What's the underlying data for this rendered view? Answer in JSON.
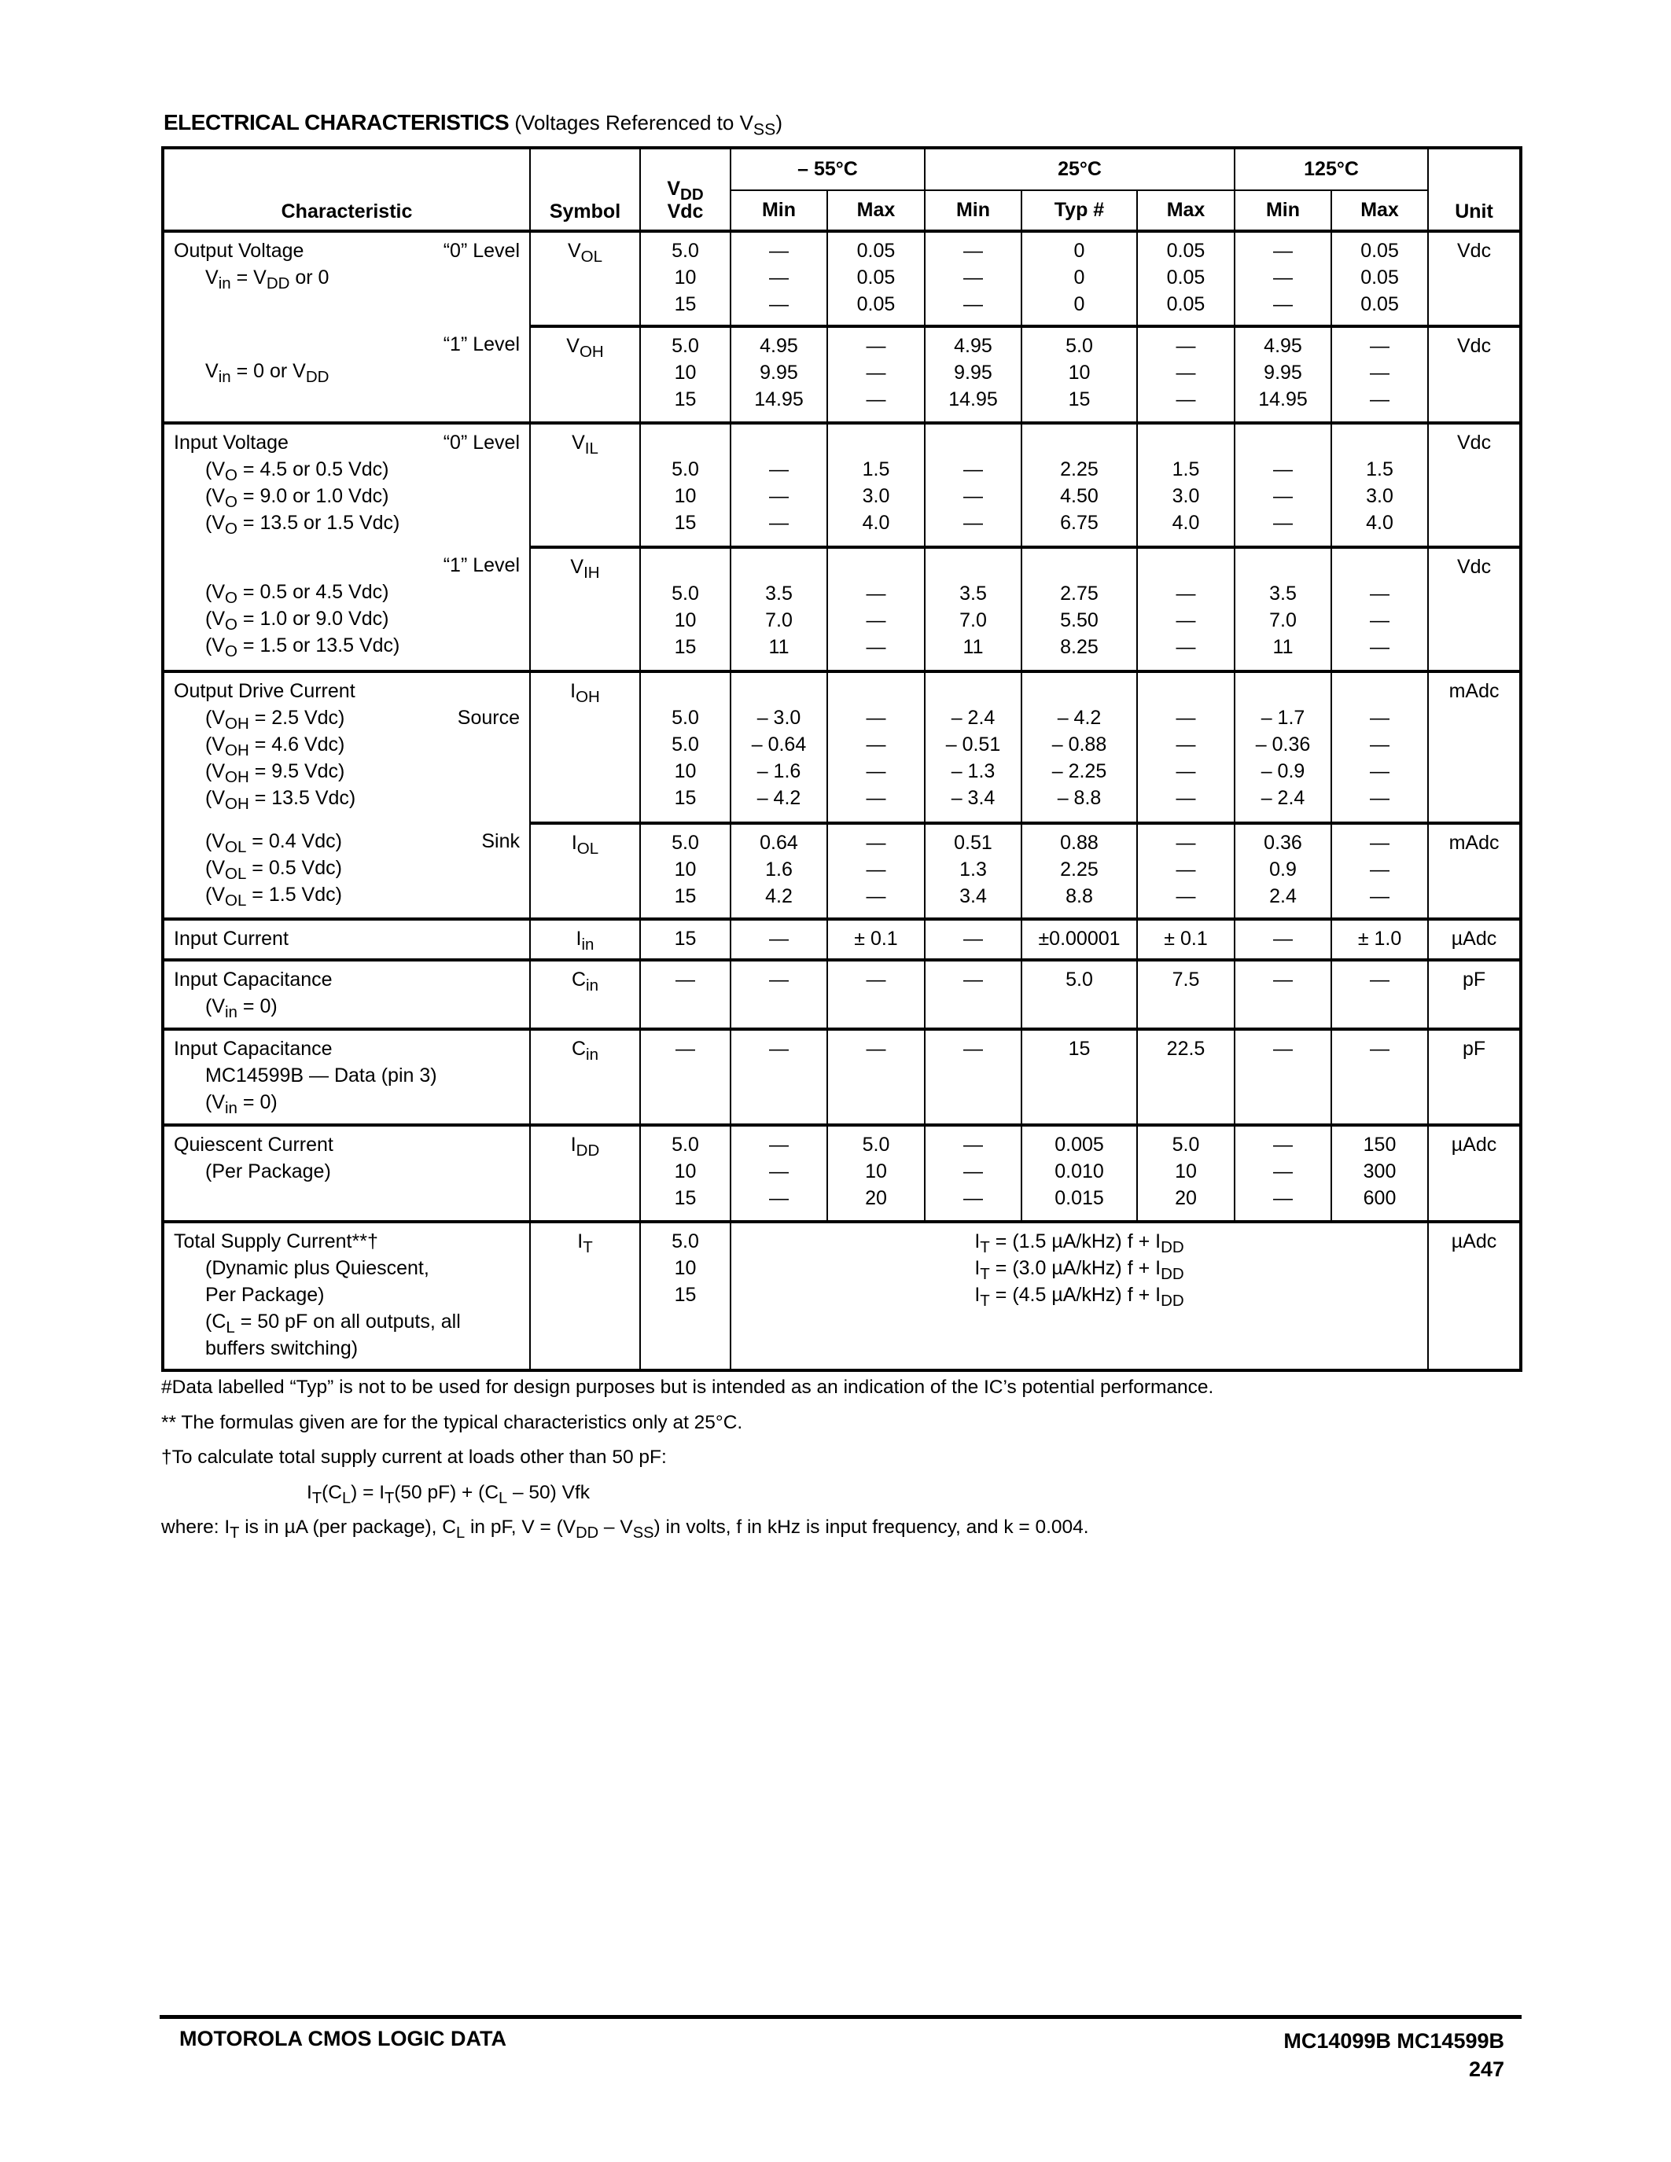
{
  "title": {
    "bold": "ELECTRICAL CHARACTERISTICS",
    "rest": "(Voltages Referenced to V_{SS})"
  },
  "headers": {
    "characteristic": "Characteristic",
    "symbol": "Symbol",
    "vdd": "V_{DD}",
    "vdd_unit": "Vdc",
    "temps": [
      "– 55°C",
      "25°C",
      "125°C"
    ],
    "sub": [
      "Min",
      "Max",
      "Min",
      "Typ #",
      "Max",
      "Min",
      "Max"
    ],
    "unit": "Unit"
  },
  "rows": [
    {
      "group_start": true,
      "characteristic": [
        {
          "text": "Output Voltage",
          "label": "“0” Level"
        },
        {
          "text": "V_{in} =  V_{DD} or 0",
          "indent": true
        }
      ],
      "symbol": "V_{OL}",
      "vdd": [
        "5.0",
        "10",
        "15"
      ],
      "values": [
        [
          "—",
          "—",
          "—"
        ],
        [
          "0.05",
          "0.05",
          "0.05"
        ],
        [
          "—",
          "—",
          "—"
        ],
        [
          "0",
          "0",
          "0"
        ],
        [
          "0.05",
          "0.05",
          "0.05"
        ],
        [
          "—",
          "—",
          "—"
        ],
        [
          "0.05",
          "0.05",
          "0.05"
        ]
      ],
      "unit": "Vdc"
    },
    {
      "group_start": false,
      "characteristic": [
        {
          "text": "",
          "label": "“1” Level"
        },
        {
          "text": "V_{in} = 0 or V_{DD}",
          "indent": true
        }
      ],
      "symbol": "V_{OH}",
      "vdd": [
        "5.0",
        "10",
        "15"
      ],
      "values": [
        [
          "4.95",
          "9.95",
          "14.95"
        ],
        [
          "—",
          "—",
          "—"
        ],
        [
          "4.95",
          "9.95",
          "14.95"
        ],
        [
          "5.0",
          "10",
          "15"
        ],
        [
          "—",
          "—",
          "—"
        ],
        [
          "4.95",
          "9.95",
          "14.95"
        ],
        [
          "—",
          "—",
          "—"
        ]
      ],
      "unit": "Vdc"
    },
    {
      "group_start": true,
      "characteristic": [
        {
          "text": "Input Voltage",
          "label": "“0” Level"
        },
        {
          "text": "(V_{O} = 4.5 or 0.5 Vdc)",
          "indent": true
        },
        {
          "text": "(V_{O} = 9.0 or 1.0 Vdc)",
          "indent": true
        },
        {
          "text": "(V_{O} = 13.5 or 1.5 Vdc)",
          "indent": true
        }
      ],
      "symbol": "V_{IL}",
      "vdd": [
        "",
        "5.0",
        "10",
        "15"
      ],
      "values": [
        [
          "",
          "—",
          "—",
          "—"
        ],
        [
          "",
          "1.5",
          "3.0",
          "4.0"
        ],
        [
          "",
          "—",
          "—",
          "—"
        ],
        [
          "",
          "2.25",
          "4.50",
          "6.75"
        ],
        [
          "",
          "1.5",
          "3.0",
          "4.0"
        ],
        [
          "",
          "—",
          "—",
          "—"
        ],
        [
          "",
          "1.5",
          "3.0",
          "4.0"
        ]
      ],
      "unit": "Vdc"
    },
    {
      "group_start": false,
      "characteristic": [
        {
          "text": "",
          "label": "“1” Level"
        },
        {
          "text": "(V_{O} = 0.5 or 4.5 Vdc)",
          "indent": true
        },
        {
          "text": "(V_{O} = 1.0 or 9.0 Vdc)",
          "indent": true
        },
        {
          "text": "(V_{O} = 1.5 or 13.5 Vdc)",
          "indent": true
        }
      ],
      "symbol": "V_{IH}",
      "vdd": [
        "",
        "5.0",
        "10",
        "15"
      ],
      "values": [
        [
          "",
          "3.5",
          "7.0",
          "11"
        ],
        [
          "",
          "—",
          "—",
          "—"
        ],
        [
          "",
          "3.5",
          "7.0",
          "11"
        ],
        [
          "",
          "2.75",
          "5.50",
          "8.25"
        ],
        [
          "",
          "—",
          "—",
          "—"
        ],
        [
          "",
          "3.5",
          "7.0",
          "11"
        ],
        [
          "",
          "—",
          "—",
          "—"
        ]
      ],
      "unit": "Vdc"
    },
    {
      "group_start": true,
      "characteristic": [
        {
          "text": "Output Drive Current"
        },
        {
          "text": "(V_{OH} = 2.5 Vdc)",
          "indent": true,
          "label": "Source"
        },
        {
          "text": "(V_{OH} = 4.6 Vdc)",
          "indent": true
        },
        {
          "text": "(V_{OH} = 9.5 Vdc)",
          "indent": true
        },
        {
          "text": "(V_{OH} = 13.5 Vdc)",
          "indent": true
        }
      ],
      "symbol": "I_{OH}",
      "vdd": [
        "",
        "5.0",
        "5.0",
        "10",
        "15"
      ],
      "values": [
        [
          "",
          "– 3.0",
          "– 0.64",
          "– 1.6",
          "– 4.2"
        ],
        [
          "",
          "—",
          "—",
          "—",
          "—"
        ],
        [
          "",
          "– 2.4",
          "– 0.51",
          "– 1.3",
          "– 3.4"
        ],
        [
          "",
          "– 4.2",
          "– 0.88",
          "– 2.25",
          "– 8.8"
        ],
        [
          "",
          "—",
          "—",
          "—",
          "—"
        ],
        [
          "",
          "– 1.7",
          "– 0.36",
          "– 0.9",
          "– 2.4"
        ],
        [
          "",
          "—",
          "—",
          "—",
          "—"
        ]
      ],
      "unit": "mAdc"
    },
    {
      "group_start": false,
      "characteristic": [
        {
          "text": "(V_{OL} = 0.4 Vdc)",
          "indent": true,
          "label": "Sink"
        },
        {
          "text": "(V_{OL} = 0.5 Vdc)",
          "indent": true
        },
        {
          "text": "(V_{OL} = 1.5 Vdc)",
          "indent": true
        }
      ],
      "symbol": "I_{OL}",
      "vdd": [
        "5.0",
        "10",
        "15"
      ],
      "values": [
        [
          "0.64",
          "1.6",
          "4.2"
        ],
        [
          "—",
          "—",
          "—"
        ],
        [
          "0.51",
          "1.3",
          "3.4"
        ],
        [
          "0.88",
          "2.25",
          "8.8"
        ],
        [
          "—",
          "—",
          "—"
        ],
        [
          "0.36",
          "0.9",
          "2.4"
        ],
        [
          "—",
          "—",
          "—"
        ]
      ],
      "unit": "mAdc"
    },
    {
      "group_start": true,
      "characteristic": [
        {
          "text": "Input Current"
        }
      ],
      "symbol": "I_{in}",
      "vdd": [
        "15"
      ],
      "values": [
        [
          "—"
        ],
        [
          "± 0.1"
        ],
        [
          "—"
        ],
        [
          "±0.00001"
        ],
        [
          "± 0.1"
        ],
        [
          "—"
        ],
        [
          "± 1.0"
        ]
      ],
      "unit": "µAdc"
    },
    {
      "group_start": true,
      "characteristic": [
        {
          "text": "Input Capacitance"
        },
        {
          "text": "(V_{in} = 0)",
          "indent": true
        }
      ],
      "symbol": "C_{in}",
      "vdd": [
        "—"
      ],
      "values": [
        [
          "—"
        ],
        [
          "—"
        ],
        [
          "—"
        ],
        [
          "5.0"
        ],
        [
          "7.5"
        ],
        [
          "—"
        ],
        [
          "—"
        ]
      ],
      "unit": "pF"
    },
    {
      "group_start": true,
      "characteristic": [
        {
          "text": "Input Capacitance"
        },
        {
          "text": "MC14599B — Data (pin 3)",
          "indent": true
        },
        {
          "text": "(V_{in} = 0)",
          "indent": true
        }
      ],
      "symbol": "C_{in}",
      "vdd": [
        "—"
      ],
      "values": [
        [
          "—"
        ],
        [
          "—"
        ],
        [
          "—"
        ],
        [
          "15"
        ],
        [
          "22.5"
        ],
        [
          "—"
        ],
        [
          "—"
        ]
      ],
      "unit": "pF"
    },
    {
      "group_start": true,
      "characteristic": [
        {
          "text": "Quiescent Current"
        },
        {
          "text": "(Per Package)",
          "indent": true
        }
      ],
      "symbol": "I_{DD}",
      "vdd": [
        "5.0",
        "10",
        "15"
      ],
      "values": [
        [
          "—",
          "—",
          "—"
        ],
        [
          "5.0",
          "10",
          "20"
        ],
        [
          "—",
          "—",
          "—"
        ],
        [
          "0.005",
          "0.010",
          "0.015"
        ],
        [
          "5.0",
          "10",
          "20"
        ],
        [
          "—",
          "—",
          "—"
        ],
        [
          "150",
          "300",
          "600"
        ]
      ],
      "unit": "µAdc"
    },
    {
      "group_start": true,
      "characteristic": [
        {
          "text": "Total Supply Current**†"
        },
        {
          "text": "(Dynamic plus Quiescent,",
          "indent": true
        },
        {
          "text": "Per Package)",
          "indent": true
        },
        {
          "text": "(C_{L} = 50 pF on all outputs, all",
          "indent": true
        },
        {
          "text": "buffers switching)",
          "indent": true
        }
      ],
      "symbol": "I_{T}",
      "vdd": [
        "5.0",
        "10",
        "15"
      ],
      "formulas": [
        "I_{T} = (1.5 µA/kHz) f + I_{DD}",
        "I_{T} = (3.0 µA/kHz) f + I_{DD}",
        "I_{T} = (4.5 µA/kHz) f + I_{DD}"
      ],
      "unit": "µAdc"
    }
  ],
  "notes": [
    "#Data labelled “Typ” is not to be used for design purposes but is intended as an indication of the IC’s potential performance.",
    "** The formulas given are for the typical characteristics only at 25°C.",
    "†To calculate total supply current at loads other than 50 pF:",
    "I_{T}(C_{L}) = I_{T}(50 pF) + (C_{L} – 50) Vfk",
    "where: I_{T} is in µA (per package), C_{L} in pF, V = (V_{DD} – V_{SS}) in volts, f in kHz is input frequency, and k = 0.004."
  ],
  "footer": {
    "left": "MOTOROLA CMOS LOGIC DATA",
    "right": "MC14099B MC14599B",
    "page": "247"
  }
}
